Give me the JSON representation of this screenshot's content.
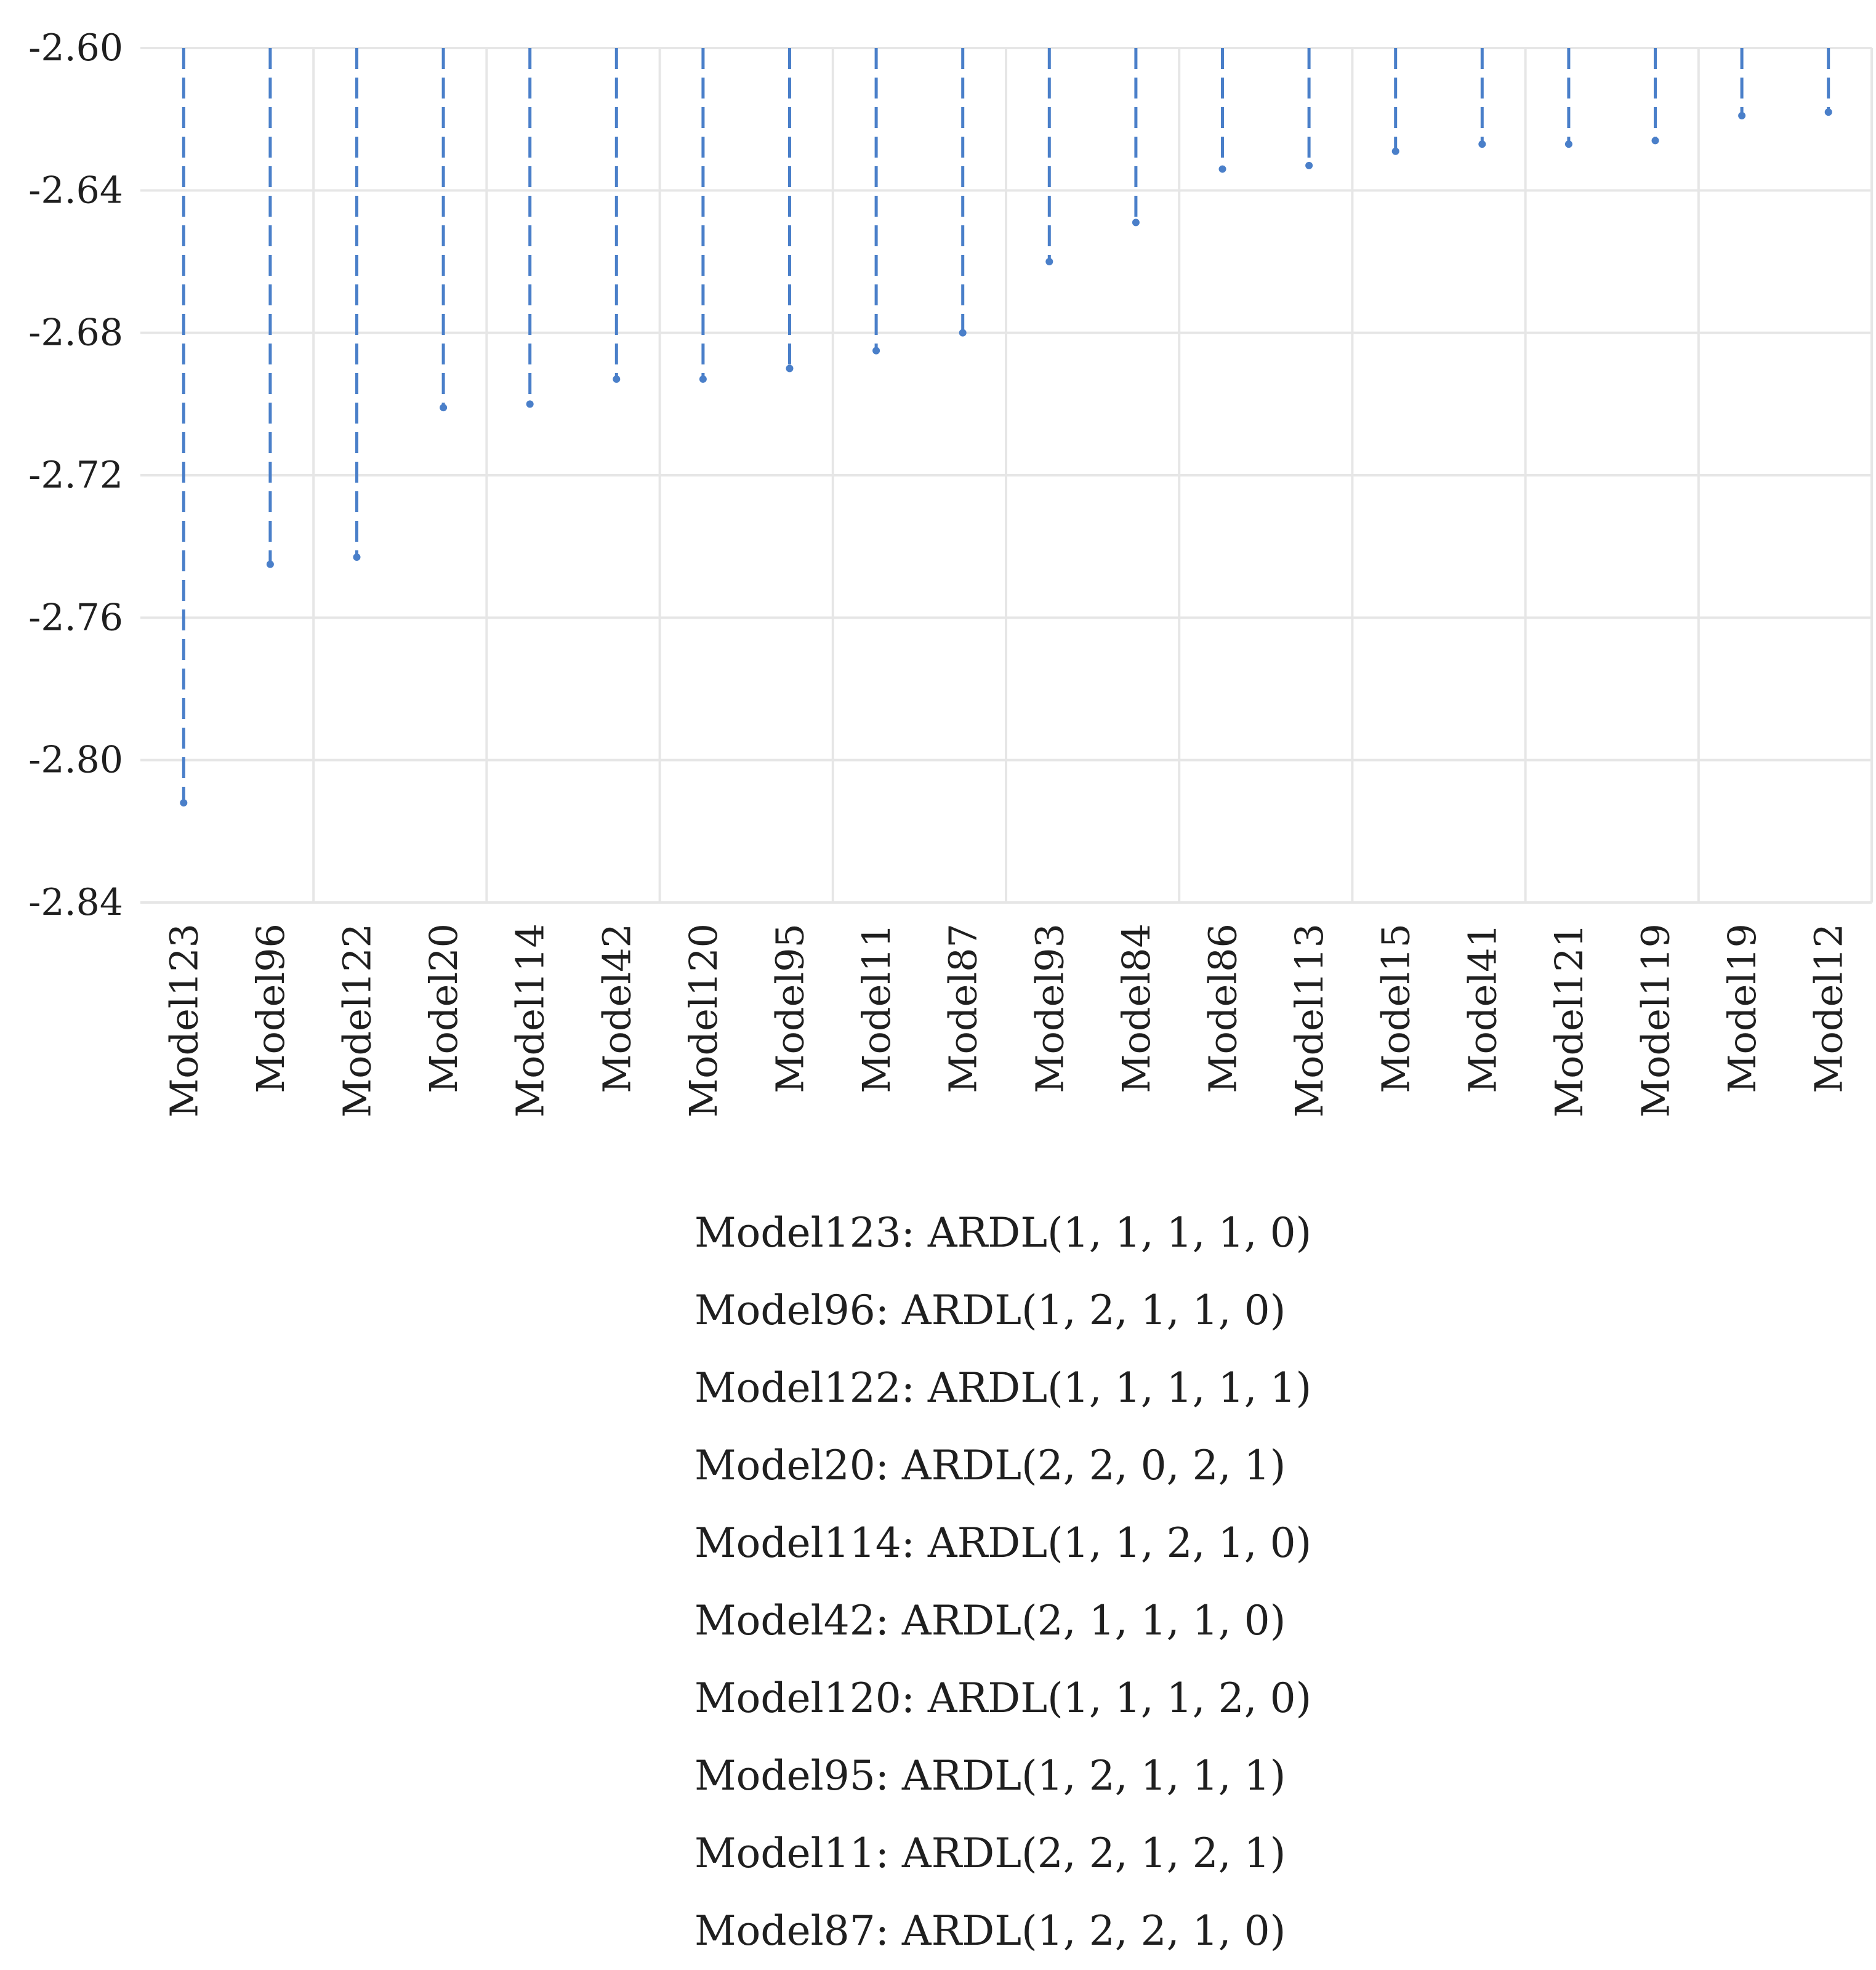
{
  "chart_data": {
    "type": "line",
    "categories": [
      "Model123",
      "Model96",
      "Model122",
      "Model20",
      "Model114",
      "Model42",
      "Model120",
      "Model95",
      "Model11",
      "Model87",
      "Model93",
      "Model84",
      "Model86",
      "Model113",
      "Model15",
      "Model41",
      "Model121",
      "Model119",
      "Model19",
      "Model12"
    ],
    "values": [
      -2.812,
      -2.745,
      -2.743,
      -2.701,
      -2.7,
      -2.693,
      -2.693,
      -2.69,
      -2.685,
      -2.68,
      -2.66,
      -2.649,
      -2.634,
      -2.633,
      -2.629,
      -2.627,
      -2.627,
      -2.626,
      -2.619,
      -2.618
    ],
    "baseline": -2.6,
    "ylim": [
      -2.84,
      -2.6
    ],
    "yticks": [
      "-2.60",
      "-2.64",
      "-2.68",
      "-2.72",
      "-2.76",
      "-2.80",
      "-2.84"
    ],
    "ytick_values": [
      -2.6,
      -2.64,
      -2.68,
      -2.72,
      -2.76,
      -2.8,
      -2.84
    ],
    "grid": true,
    "series_color": "#4a7fc9",
    "grid_color": "#e6e6e6",
    "title": "",
    "xlabel": "",
    "ylabel": ""
  },
  "legend": [
    "Model123: ARDL(1, 1, 1, 1, 0)",
    "Model96: ARDL(1, 2, 1, 1, 0)",
    "Model122: ARDL(1, 1, 1, 1, 1)",
    "Model20: ARDL(2, 2, 0, 2, 1)",
    "Model114: ARDL(1, 1, 2, 1, 0)",
    "Model42: ARDL(2, 1, 1, 1, 0)",
    "Model120: ARDL(1, 1, 1, 2, 0)",
    "Model95: ARDL(1, 2, 1, 1, 1)",
    "Model11: ARDL(2, 2, 1, 2, 1)",
    "Model87: ARDL(1, 2, 2, 1, 0)"
  ]
}
